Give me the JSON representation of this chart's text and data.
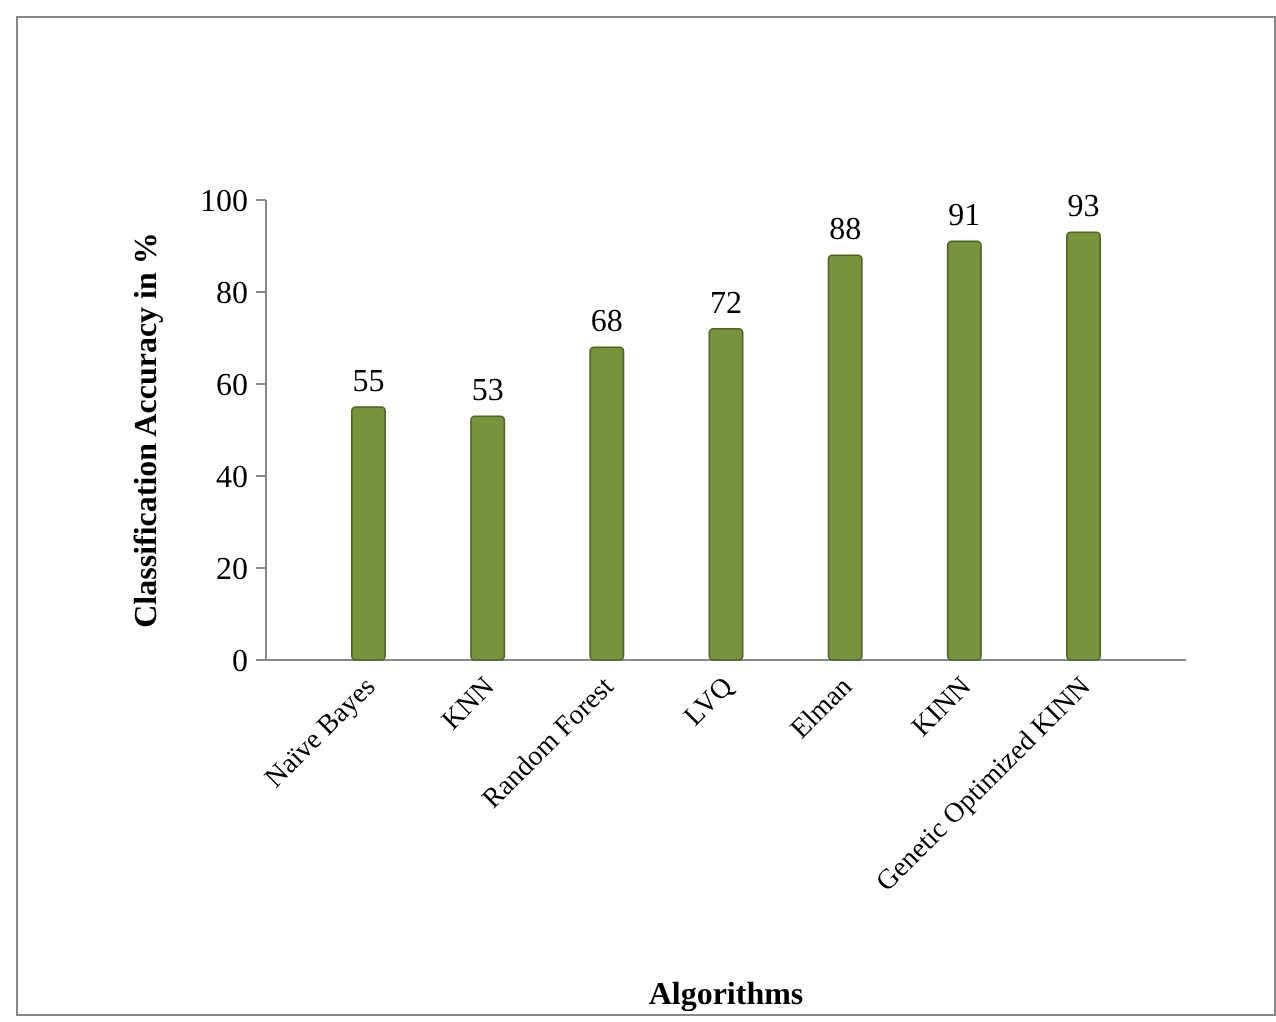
{
  "chart_data": {
    "type": "bar",
    "categories": [
      "Naïve Bayes",
      "KNN",
      "Random Forest",
      "LVQ",
      "Elman",
      "KINN",
      "Genetic Optimized KINN"
    ],
    "values": [
      55,
      53,
      68,
      72,
      88,
      91,
      93
    ],
    "color": "#77933c",
    "xlabel": "Algorithms",
    "ylabel": "Classification Accuracy in %",
    "ylim": [
      0,
      100
    ],
    "yticks": [
      0,
      20,
      40,
      60,
      80,
      100
    ],
    "data_labels": true
  }
}
